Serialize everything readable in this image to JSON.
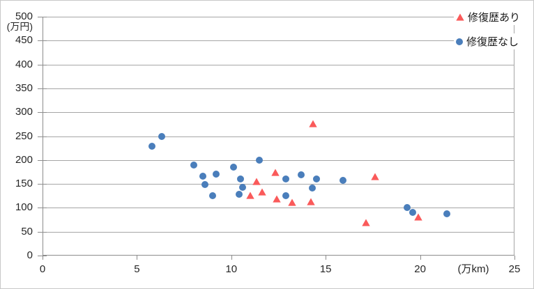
{
  "chart": {
    "background": "#FFFFFF",
    "outer_border_color": "#C8C8C8"
  },
  "chart_data": {
    "type": "scatter",
    "title": "",
    "xlabel": "(万km)",
    "ylabel": "(万円)",
    "xlim": [
      0,
      25
    ],
    "ylim": [
      0,
      500
    ],
    "x_ticks": [
      0,
      5,
      10,
      15,
      20,
      25
    ],
    "y_ticks": [
      500,
      450,
      400,
      350,
      300,
      250,
      200,
      150,
      100,
      50,
      0
    ],
    "grid": true,
    "legend_position": "top-right",
    "colors": {
      "grid": "#A6A6A6",
      "axis": "#8C8C8C",
      "tick_text": "#262626"
    },
    "series": [
      {
        "name": "修復歴あり",
        "marker": "triangle",
        "color": "#FA5A5A",
        "points": [
          [
            11.0,
            129
          ],
          [
            11.3,
            158
          ],
          [
            11.6,
            136
          ],
          [
            12.3,
            177
          ],
          [
            12.4,
            121
          ],
          [
            13.2,
            115
          ],
          [
            14.2,
            116
          ],
          [
            14.3,
            279
          ],
          [
            17.1,
            72
          ],
          [
            17.6,
            168
          ],
          [
            19.9,
            84
          ]
        ]
      },
      {
        "name": "修復歴なし",
        "marker": "circle",
        "color": "#4A7EBB",
        "points": [
          [
            5.8,
            229
          ],
          [
            6.3,
            250
          ],
          [
            8.0,
            190
          ],
          [
            8.5,
            166
          ],
          [
            8.6,
            149
          ],
          [
            9.0,
            126
          ],
          [
            9.2,
            171
          ],
          [
            10.1,
            185
          ],
          [
            10.4,
            128
          ],
          [
            10.5,
            161
          ],
          [
            10.6,
            143
          ],
          [
            11.5,
            200
          ],
          [
            12.9,
            160
          ],
          [
            12.9,
            125
          ],
          [
            13.7,
            169
          ],
          [
            14.3,
            141
          ],
          [
            14.5,
            160
          ],
          [
            15.9,
            158
          ],
          [
            19.3,
            100
          ],
          [
            19.6,
            90
          ],
          [
            21.4,
            87
          ]
        ]
      }
    ]
  }
}
